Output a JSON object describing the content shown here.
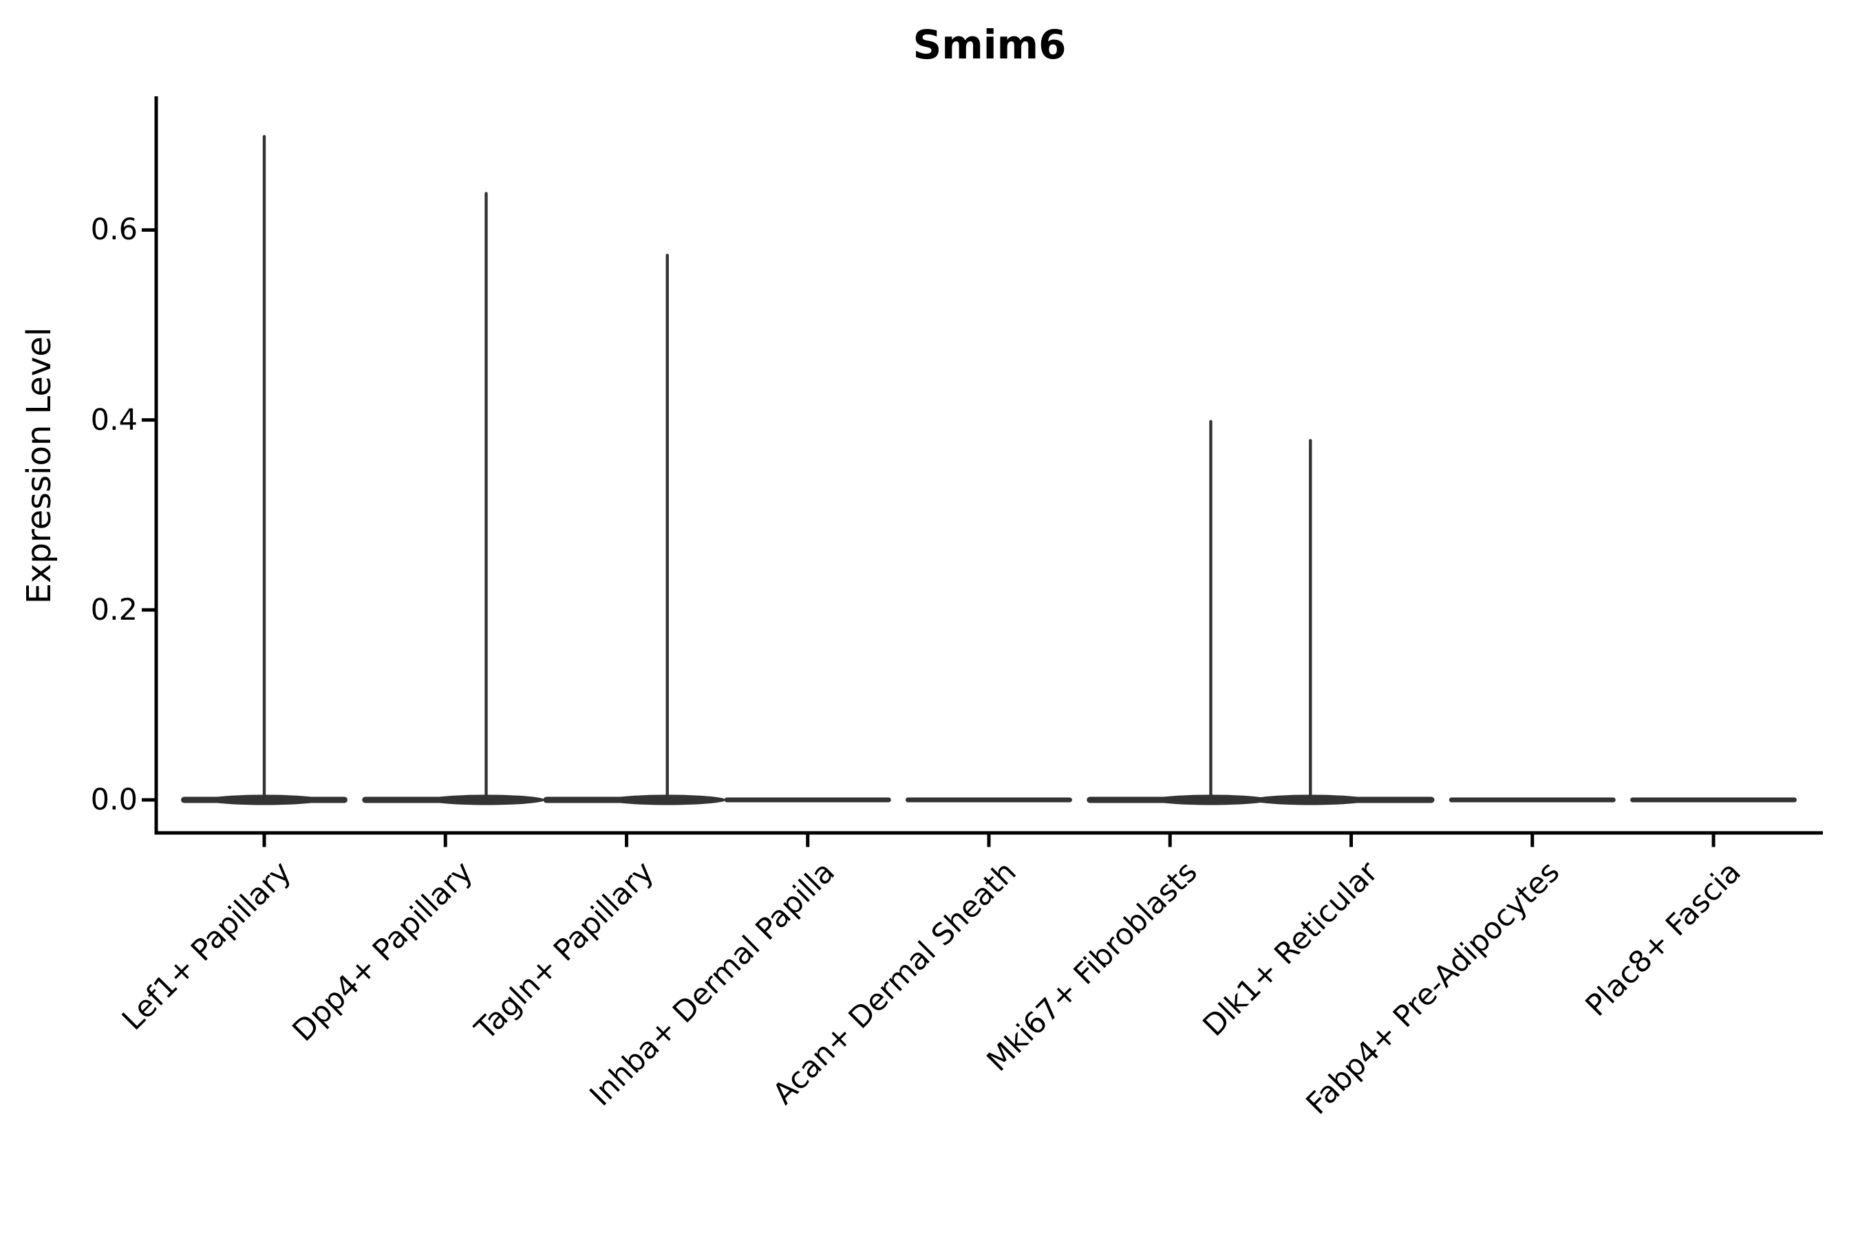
{
  "chart_data": {
    "type": "violin",
    "title": "Smim6",
    "ylabel": "Expression Level",
    "xlabel": "",
    "grid": false,
    "legend": null,
    "ylim": [
      -0.035,
      0.74
    ],
    "yticks": [
      "0.0",
      "0.2",
      "0.4",
      "0.6"
    ],
    "categories": [
      "Lef1+ Papillary",
      "Dpp4+ Papillary",
      "Tagln+ Papillary",
      "Inhba+ Dermal Papilla",
      "Acan+ Dermal Sheath",
      "Mki67+ Fibroblasts",
      "Dlk1+ Reticular",
      "Fabp4+ Pre-Adipocytes",
      "Plac8+ Fascia"
    ],
    "violins": [
      {
        "label": "Lef1+ Papillary",
        "bulk_at": 0.0,
        "max": 0.7,
        "spike_offset": 0.0
      },
      {
        "label": "Dpp4+ Papillary",
        "bulk_at": 0.0,
        "max": 0.64,
        "spike_offset": 0.225
      },
      {
        "label": "Tagln+ Papillary",
        "bulk_at": 0.0,
        "max": 0.575,
        "spike_offset": 0.225
      },
      {
        "label": "Inhba+ Dermal Papilla",
        "bulk_at": 0.0,
        "max": 0.0,
        "spike_offset": 0.0
      },
      {
        "label": "Acan+ Dermal Sheath",
        "bulk_at": 0.0,
        "max": 0.0,
        "spike_offset": 0.0
      },
      {
        "label": "Mki67+ Fibroblasts",
        "bulk_at": 0.0,
        "max": 0.4,
        "spike_offset": 0.225
      },
      {
        "label": "Dlk1+ Reticular",
        "bulk_at": 0.0,
        "max": 0.38,
        "spike_offset": -0.225
      },
      {
        "label": "Fabp4+ Pre-Adipocytes",
        "bulk_at": 0.0,
        "max": 0.0,
        "spike_offset": 0.0
      },
      {
        "label": "Plac8+ Fascia",
        "bulk_at": 0.0,
        "max": 0.0,
        "spike_offset": 0.0
      }
    ],
    "colors": {
      "violin": "#333333",
      "axis": "#000000",
      "text": "#000000",
      "background": "#ffffff"
    }
  }
}
